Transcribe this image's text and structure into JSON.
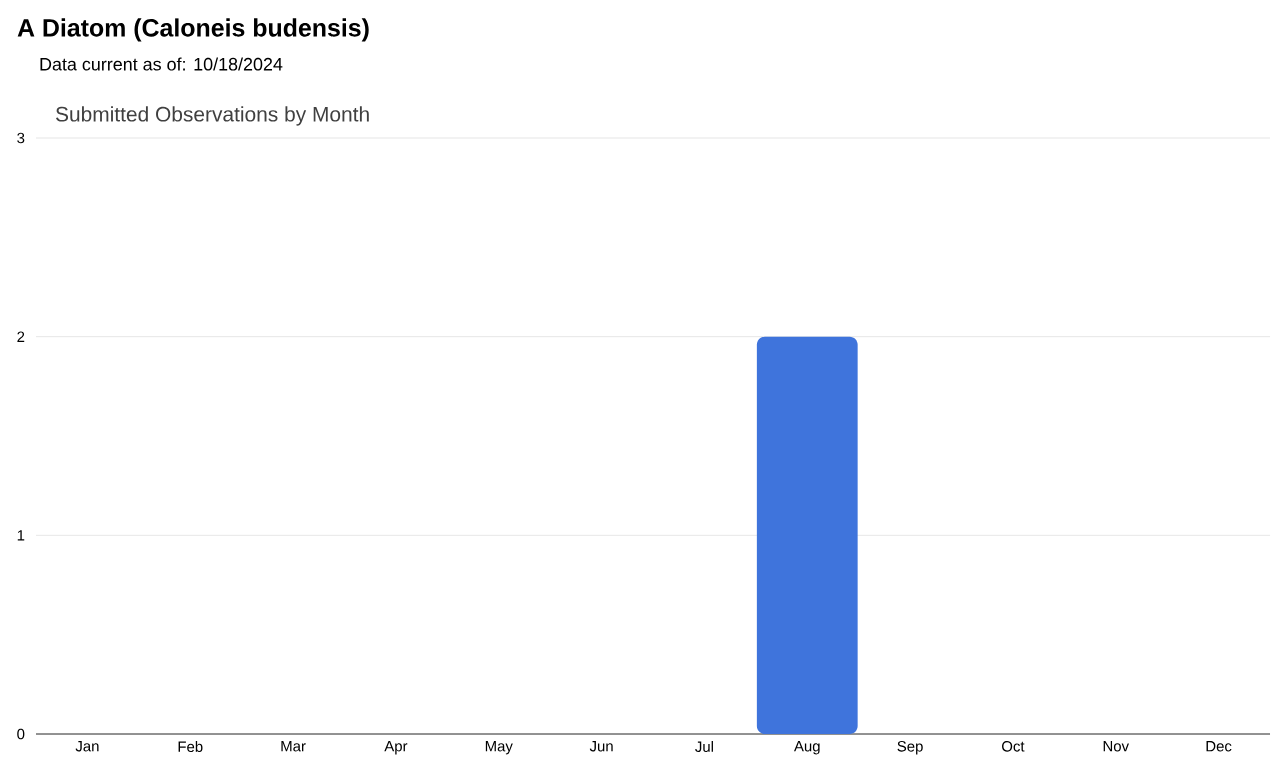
{
  "chart_data": {
    "type": "bar",
    "title": "A Diatom   (Caloneis budensis)",
    "subtitle": "Data current as of: 10/18/2024",
    "annotations": [
      "Submitted Observations by Month"
    ],
    "categories": [
      "Jan",
      "Feb",
      "Mar",
      "Apr",
      "May",
      "Jun",
      "Jul",
      "Aug",
      "Sep",
      "Oct",
      "Nov",
      "Dec"
    ],
    "values": [
      0,
      0,
      0,
      0,
      0,
      0,
      0,
      2,
      0,
      0,
      0,
      0
    ],
    "color": "#3f74dc",
    "ylim": [
      0,
      3
    ],
    "yticks": [
      0,
      1,
      2,
      3
    ],
    "grid": "y"
  }
}
